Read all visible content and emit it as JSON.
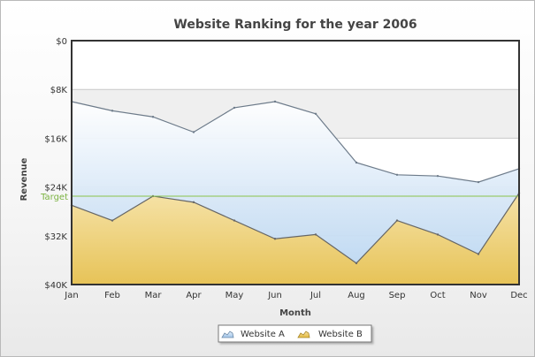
{
  "chart_data": {
    "type": "area",
    "title": "Website Ranking for the year 2006",
    "xlabel": "Month",
    "ylabel": "Revenue",
    "categories": [
      "Jan",
      "Feb",
      "Mar",
      "Apr",
      "May",
      "Jun",
      "Jul",
      "Aug",
      "Sep",
      "Oct",
      "Nov",
      "Dec"
    ],
    "y_axis": {
      "min": 0,
      "max": 40000,
      "inverted": true,
      "ticks": [
        0,
        8000,
        16000,
        24000,
        32000,
        40000
      ],
      "tick_labels": [
        "$0",
        "$8K",
        "$16K",
        "$24K",
        "$32K",
        "$40K"
      ]
    },
    "series": [
      {
        "name": "Website A",
        "values": [
          10000,
          11500,
          12500,
          15000,
          11000,
          10000,
          12000,
          20000,
          22000,
          22200,
          23200,
          21000
        ],
        "color": "#cfe4f8",
        "line_color": "#6d7b8a"
      },
      {
        "name": "Website B",
        "values": [
          27000,
          29500,
          25500,
          26500,
          29500,
          32500,
          31800,
          36500,
          29500,
          31800,
          35000,
          25000
        ],
        "color": "#eec95c",
        "line_color": "#666666"
      }
    ],
    "trendline": {
      "label": "Target",
      "value": 25500,
      "color": "#8bc34a"
    },
    "legend_position": "bottom",
    "grid": true
  }
}
